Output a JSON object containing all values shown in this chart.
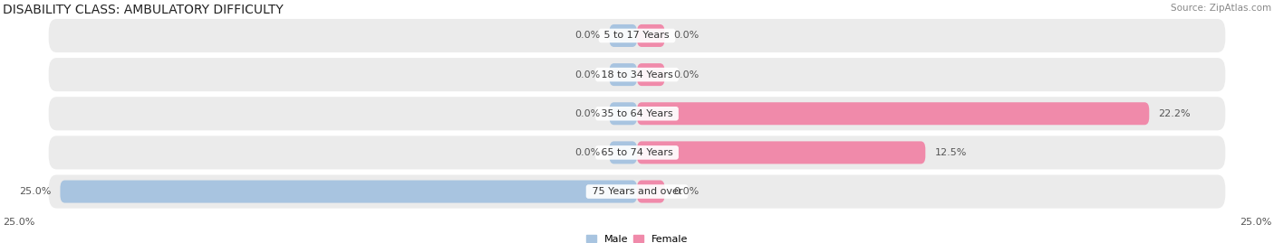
{
  "title": "DISABILITY CLASS: AMBULATORY DIFFICULTY",
  "source": "Source: ZipAtlas.com",
  "categories": [
    "5 to 17 Years",
    "18 to 34 Years",
    "35 to 64 Years",
    "65 to 74 Years",
    "75 Years and over"
  ],
  "male_left_values": [
    0.0,
    0.0,
    0.0,
    0.0,
    25.0
  ],
  "female_right_values": [
    0.0,
    0.0,
    22.2,
    12.5,
    0.0
  ],
  "male_color": "#a8c4e0",
  "female_color": "#f08aaa",
  "row_bg_color": "#ebebeb",
  "max_val": 25.0,
  "title_fontsize": 10,
  "source_fontsize": 7.5,
  "label_fontsize": 8,
  "category_fontsize": 8,
  "legend_fontsize": 8,
  "bg_color": "#ffffff",
  "stub_size": 1.2
}
